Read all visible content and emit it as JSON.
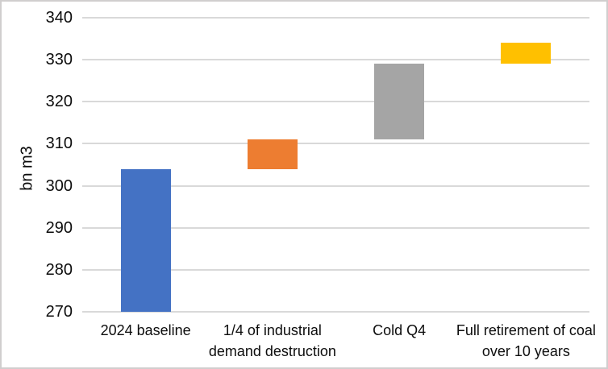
{
  "chart_data": {
    "type": "bar",
    "subtype": "waterfall",
    "title": "",
    "xlabel": "",
    "ylabel": "bn m3",
    "ylim": [
      270,
      340
    ],
    "yticks": [
      270,
      280,
      290,
      300,
      310,
      320,
      330,
      340
    ],
    "grid": true,
    "legend": false,
    "categories": [
      "2024 baseline",
      "1/4 of industrial demand destruction",
      "Cold Q4",
      "Full retirement of coal over 10 years"
    ],
    "bars": [
      {
        "category": "2024 baseline",
        "from": 270,
        "to": 304,
        "color": "#4472C4"
      },
      {
        "category": "1/4 of industrial demand destruction",
        "from": 304,
        "to": 311,
        "color": "#ED7D31"
      },
      {
        "category": "Cold Q4",
        "from": 311,
        "to": 329,
        "color": "#A5A5A5"
      },
      {
        "category": "Full retirement of coal over 10 years",
        "from": 329,
        "to": 334,
        "color": "#FFC000"
      }
    ],
    "colors": {
      "gridline": "#D9D9D9",
      "frame_border": "#D0CECE",
      "text": "#0D0D0D",
      "background": "#FFFFFF"
    }
  }
}
